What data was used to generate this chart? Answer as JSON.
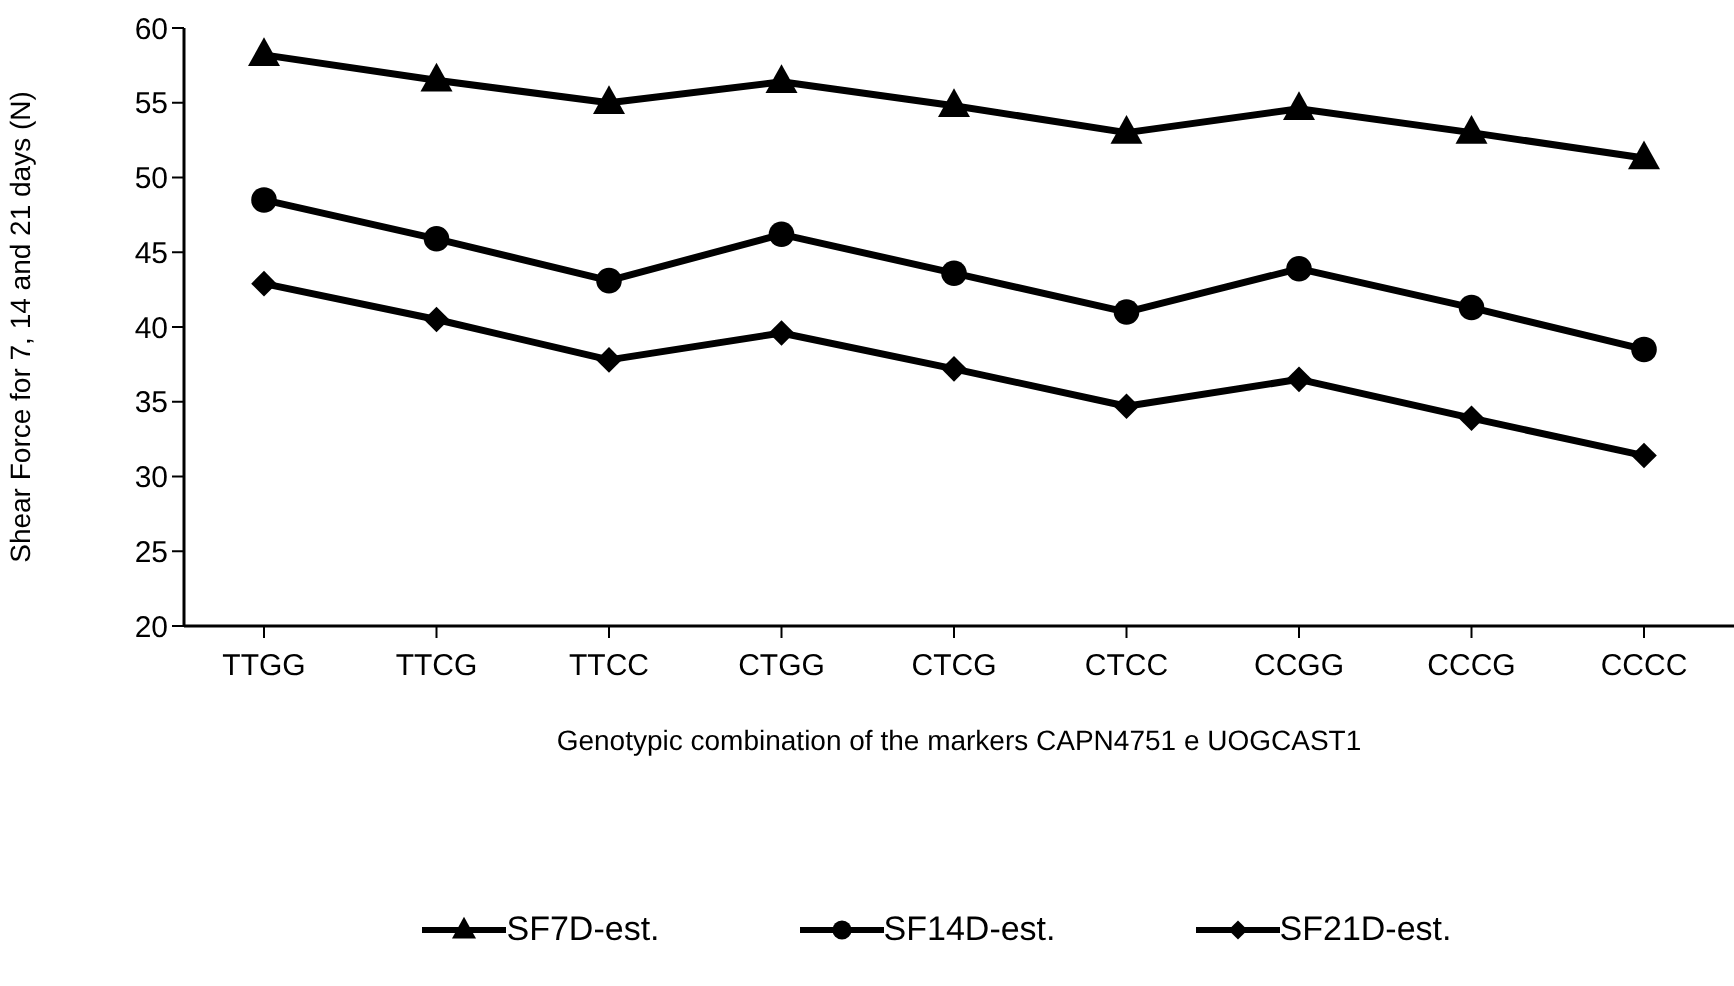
{
  "chart_data": {
    "type": "line",
    "xlabel": "Genotypic combination of the markers CAPN4751  e UOGCAST1",
    "ylabel": "Shear Force for 7, 14 and 21 days (N)",
    "categories": [
      "TTGG",
      "TTCG",
      "TTCC",
      "CTGG",
      "CTCG",
      "CTCC",
      "CCGG",
      "CCCG",
      "CCCC"
    ],
    "series": [
      {
        "name": "SF7D-est.",
        "color": "#000000",
        "marker": "triangle",
        "values": [
          58.2,
          56.5,
          55.0,
          56.4,
          54.8,
          53.0,
          54.6,
          53.0,
          51.3
        ]
      },
      {
        "name": "SF14D-est.",
        "color": "#000000",
        "marker": "circle",
        "values": [
          48.5,
          45.9,
          43.1,
          46.2,
          43.6,
          41.0,
          43.9,
          41.3,
          38.5
        ]
      },
      {
        "name": "SF21D-est.",
        "color": "#000000",
        "marker": "diamond",
        "values": [
          42.9,
          40.5,
          37.8,
          39.6,
          37.2,
          34.7,
          36.5,
          33.9,
          31.4
        ]
      }
    ],
    "ylim": [
      20,
      60
    ],
    "yticks": [
      20,
      25,
      30,
      35,
      40,
      45,
      50,
      55,
      60
    ],
    "grid": false,
    "legend": "bottom",
    "line_style": "solid"
  }
}
